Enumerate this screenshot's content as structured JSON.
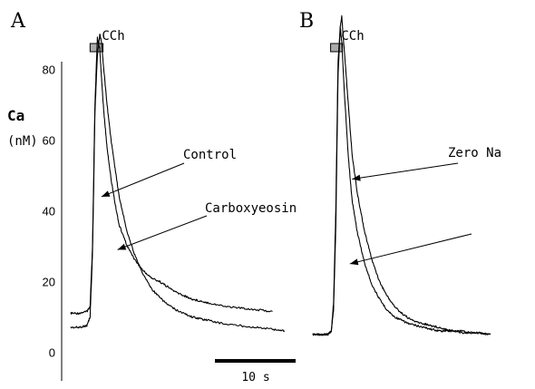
{
  "chart_data": [
    {
      "type": "line",
      "panel": "A",
      "stimulus": "CCh",
      "ylabel": "Ca",
      "yunit": "(nM)",
      "ylim": [
        -3,
        92
      ],
      "yticks": [
        0,
        20,
        40,
        60,
        80
      ],
      "xlim": [
        0,
        30
      ],
      "scale_bar": {
        "value": 10,
        "label": "10 s"
      },
      "stimulus_window": [
        2.4,
        4.0
      ],
      "annotations": [
        {
          "text": "Control",
          "points_to": {
            "x": 3.8,
            "y": 44
          }
        },
        {
          "text": "Carboxyeosin",
          "points_to": {
            "x": 5.8,
            "y": 29
          }
        }
      ],
      "series": [
        {
          "name": "",
          "x": [
            0,
            1,
            2,
            2.4,
            2.7,
            3.0,
            3.3,
            3.6,
            3.8,
            4.1,
            4.5,
            5,
            5.5,
            6,
            7,
            8,
            9,
            10,
            11,
            12,
            13,
            14,
            15,
            16,
            17,
            19,
            21,
            23,
            25
          ],
          "y": [
            11,
            11,
            11.5,
            13,
            30,
            70,
            89,
            86,
            78,
            68,
            58,
            49,
            42,
            36,
            30,
            26,
            23,
            21,
            20,
            18.5,
            17,
            16,
            15,
            14.5,
            14,
            13,
            12.5,
            12,
            11.5
          ]
        },
        {
          "name": "",
          "x": [
            0,
            1,
            2,
            2.4,
            2.7,
            3.0,
            3.3,
            3.6,
            3.8,
            4.1,
            4.5,
            5,
            5.5,
            6,
            7,
            8,
            9,
            10,
            11,
            12,
            13,
            14,
            15,
            16,
            17,
            19,
            21,
            23,
            25,
            26.5
          ],
          "y": [
            7,
            7,
            7.5,
            10,
            28,
            68,
            84,
            90,
            88,
            80,
            70,
            60,
            52,
            44,
            34,
            27,
            22,
            18,
            15.5,
            13.5,
            12,
            11,
            10,
            9.5,
            9,
            8,
            7.5,
            7,
            6.5,
            6
          ]
        }
      ]
    },
    {
      "type": "line",
      "panel": "B",
      "stimulus": "CCh",
      "ylim": [
        -3,
        92
      ],
      "xlim": [
        0,
        30
      ],
      "stimulus_window": [
        2.4,
        4.0
      ],
      "annotations": [
        {
          "text": "Zero Na",
          "points_to": {
            "x": 5.3,
            "y": 49
          }
        },
        {
          "text": "",
          "points_to": {
            "x": 5.0,
            "y": 25
          }
        }
      ],
      "series": [
        {
          "name": "",
          "x": [
            0,
            1,
            2,
            2.5,
            2.8,
            3.1,
            3.4,
            3.7,
            3.9,
            4.3,
            4.8,
            5.3,
            6,
            7,
            8,
            9,
            10,
            11,
            12,
            13,
            14,
            15,
            16,
            17,
            18,
            19,
            20,
            22,
            24
          ],
          "y": [
            5,
            5,
            5,
            6,
            12,
            35,
            78,
            92,
            95,
            84,
            70,
            56,
            45,
            34,
            26,
            20,
            16,
            13,
            11,
            9.5,
            8.5,
            8,
            7.5,
            7,
            6.5,
            6,
            6,
            5.5,
            5
          ]
        },
        {
          "name": "",
          "x": [
            0,
            1,
            2,
            2.5,
            2.8,
            3.1,
            3.4,
            3.7,
            3.9,
            4.3,
            4.8,
            5.3,
            6,
            7,
            8,
            9,
            10,
            11,
            12,
            13,
            14,
            15,
            16,
            17,
            18,
            19,
            20,
            22,
            24
          ],
          "y": [
            5,
            5,
            5,
            6,
            14,
            40,
            82,
            92,
            88,
            72,
            55,
            43,
            34,
            25,
            19,
            15,
            12,
            10,
            9,
            8,
            7.5,
            7,
            6.5,
            6,
            6,
            6,
            5.5,
            5.5,
            5
          ]
        }
      ]
    }
  ]
}
